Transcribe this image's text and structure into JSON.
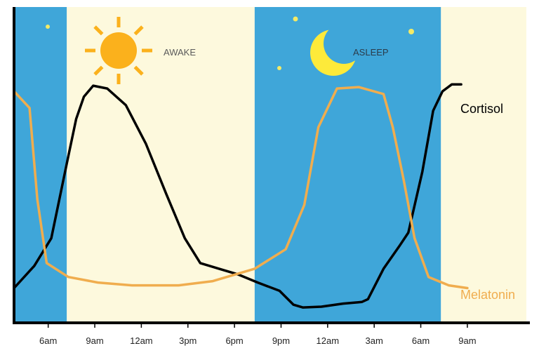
{
  "chart_data": {
    "type": "line",
    "title": "",
    "xlabel": "",
    "ylabel": "",
    "x_ticks": [
      "6am",
      "9am",
      "12am",
      "3pm",
      "6pm",
      "9pm",
      "12am",
      "3am",
      "6am",
      "9am"
    ],
    "x_range": [
      0,
      33
    ],
    "y_range": [
      0,
      100
    ],
    "bands": [
      {
        "state": "night",
        "from": 0,
        "to": 3.4
      },
      {
        "state": "day",
        "from": 3.4,
        "to": 15.5
      },
      {
        "state": "night",
        "from": 15.5,
        "to": 27.5
      },
      {
        "state": "day",
        "from": 27.5,
        "to": 33
      }
    ],
    "band_labels": {
      "awake": "AWAKE",
      "asleep": "ASLEEP"
    },
    "series": [
      {
        "name": "Cortisol",
        "color": "#000000",
        "points": [
          [
            0,
            10
          ],
          [
            1.3,
            18
          ],
          [
            2.4,
            28
          ],
          [
            3.4,
            55
          ],
          [
            4.0,
            71
          ],
          [
            4.5,
            79
          ],
          [
            5.1,
            83
          ],
          [
            6.0,
            82
          ],
          [
            7.2,
            76
          ],
          [
            8.5,
            62
          ],
          [
            9.8,
            44
          ],
          [
            11.0,
            28
          ],
          [
            12.0,
            19
          ],
          [
            13.2,
            17
          ],
          [
            14.4,
            15
          ],
          [
            15.7,
            12
          ],
          [
            17.1,
            9
          ],
          [
            18.0,
            4
          ],
          [
            18.6,
            3
          ],
          [
            19.8,
            3.3
          ],
          [
            21.2,
            4.4
          ],
          [
            22.4,
            5
          ],
          [
            22.8,
            6
          ],
          [
            23.8,
            17
          ],
          [
            24.8,
            25
          ],
          [
            25.4,
            30
          ],
          [
            26.3,
            52
          ],
          [
            27.0,
            74
          ],
          [
            27.6,
            81
          ],
          [
            28.2,
            83.5
          ],
          [
            28.8,
            83.5
          ]
        ]
      },
      {
        "name": "Melatonin",
        "color": "#f0ad4e",
        "points": [
          [
            0,
            81
          ],
          [
            1.0,
            75
          ],
          [
            1.5,
            42
          ],
          [
            2.1,
            19
          ],
          [
            3.5,
            14
          ],
          [
            5.4,
            12
          ],
          [
            7.6,
            11
          ],
          [
            10.6,
            11
          ],
          [
            12.8,
            12.5
          ],
          [
            15.5,
            17
          ],
          [
            17.5,
            24
          ],
          [
            18.7,
            40
          ],
          [
            19.6,
            68
          ],
          [
            20.8,
            82
          ],
          [
            22.2,
            82.5
          ],
          [
            23.8,
            80
          ],
          [
            24.4,
            68
          ],
          [
            25.1,
            49
          ],
          [
            25.8,
            28
          ],
          [
            26.7,
            14
          ],
          [
            28.0,
            11
          ],
          [
            29.2,
            10
          ]
        ]
      }
    ]
  }
}
